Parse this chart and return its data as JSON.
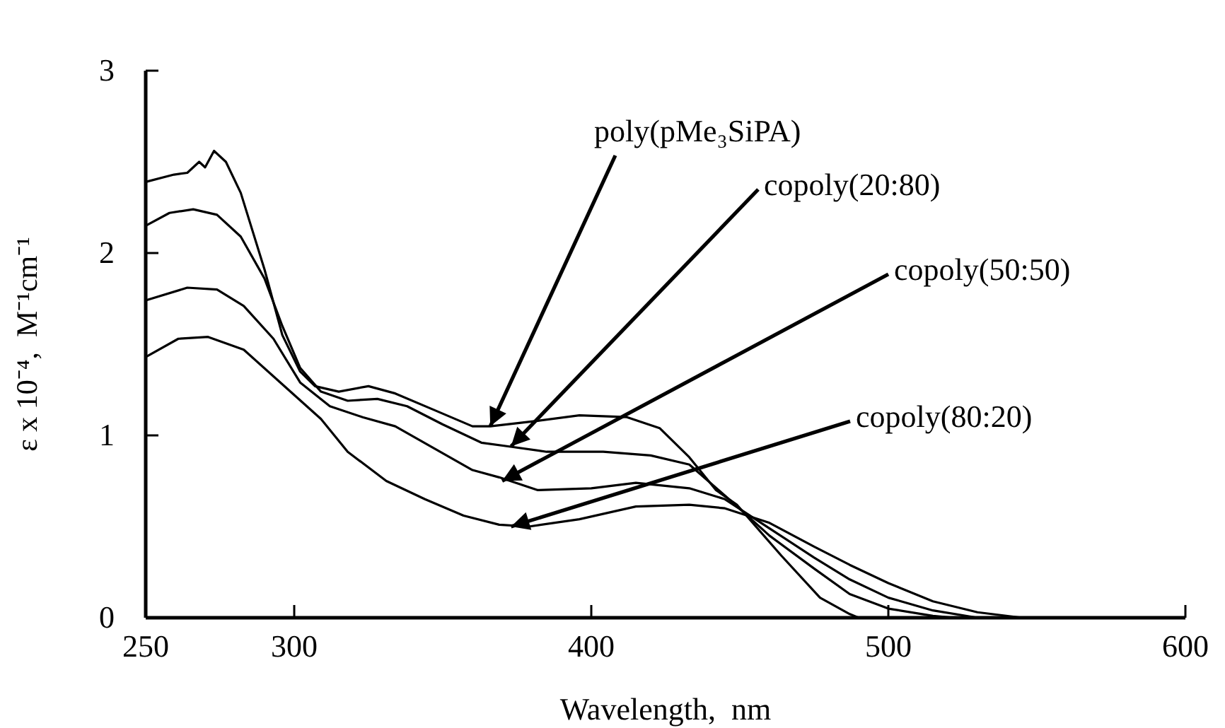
{
  "chart_data": {
    "type": "line",
    "xlabel": "Wavelength,  nm",
    "ylabel": "ε x 10⁻⁴,  M⁻¹cm⁻¹",
    "xlim": [
      250,
      600
    ],
    "ylim": [
      0,
      3
    ],
    "xticks": [
      250,
      300,
      400,
      500,
      600
    ],
    "yticks": [
      0,
      1,
      2,
      3
    ],
    "grid": false,
    "marker": "none",
    "line_style": "solid",
    "annotations": [
      {
        "text": "poly(pMe₃SiPA)",
        "x": 366,
        "y": 1.05
      },
      {
        "text": "copoly(20:80)",
        "x": 373,
        "y": 0.94
      },
      {
        "text": "copoly(50:50)",
        "x": 370,
        "y": 0.75
      },
      {
        "text": "copoly(80:20)",
        "x": 373,
        "y": 0.5
      }
    ],
    "series": [
      {
        "color": "#000000",
        "x": [
          250,
          259.5,
          264,
          268,
          270,
          273,
          277,
          282,
          290,
          296,
          302,
          307,
          315,
          325,
          334,
          347,
          360,
          366,
          382,
          396,
          412,
          423,
          433,
          442,
          449,
          464,
          477,
          487,
          490
        ],
        "values": [
          2.39,
          2.43,
          2.44,
          2.5,
          2.47,
          2.56,
          2.5,
          2.33,
          1.91,
          1.55,
          1.35,
          1.27,
          1.24,
          1.27,
          1.23,
          1.14,
          1.05,
          1.05,
          1.08,
          1.11,
          1.1,
          1.04,
          0.88,
          0.7,
          0.62,
          0.34,
          0.11,
          0.02,
          0
        ]
      },
      {
        "color": "#000000",
        "x": [
          250,
          258,
          266,
          274,
          282,
          290,
          296,
          302,
          309,
          318,
          328,
          338,
          350,
          363,
          372,
          385,
          404,
          420,
          433,
          445,
          460,
          475,
          487,
          500,
          515,
          522
        ],
        "values": [
          2.15,
          2.22,
          2.24,
          2.21,
          2.09,
          1.86,
          1.6,
          1.37,
          1.24,
          1.19,
          1.2,
          1.16,
          1.06,
          0.96,
          0.94,
          0.91,
          0.91,
          0.89,
          0.84,
          0.67,
          0.45,
          0.27,
          0.13,
          0.05,
          0.01,
          0
        ]
      },
      {
        "color": "#000000",
        "x": [
          250,
          264,
          274,
          283,
          293,
          302,
          312,
          323,
          334,
          347,
          360,
          369,
          382,
          400,
          415,
          433,
          445,
          460,
          475,
          487,
          500,
          515,
          530
        ],
        "values": [
          1.74,
          1.81,
          1.8,
          1.71,
          1.53,
          1.29,
          1.16,
          1.1,
          1.05,
          0.93,
          0.81,
          0.77,
          0.7,
          0.71,
          0.74,
          0.71,
          0.65,
          0.49,
          0.33,
          0.21,
          0.11,
          0.04,
          0
        ]
      },
      {
        "color": "#000000",
        "x": [
          250,
          261,
          271,
          283,
          296,
          309,
          318,
          331,
          344,
          357,
          369,
          379,
          396,
          415,
          433,
          445,
          460,
          475,
          487,
          500,
          515,
          530,
          545
        ],
        "values": [
          1.43,
          1.53,
          1.54,
          1.47,
          1.28,
          1.09,
          0.91,
          0.75,
          0.65,
          0.56,
          0.51,
          0.5,
          0.54,
          0.61,
          0.62,
          0.6,
          0.52,
          0.39,
          0.29,
          0.19,
          0.09,
          0.03,
          0
        ]
      }
    ]
  }
}
